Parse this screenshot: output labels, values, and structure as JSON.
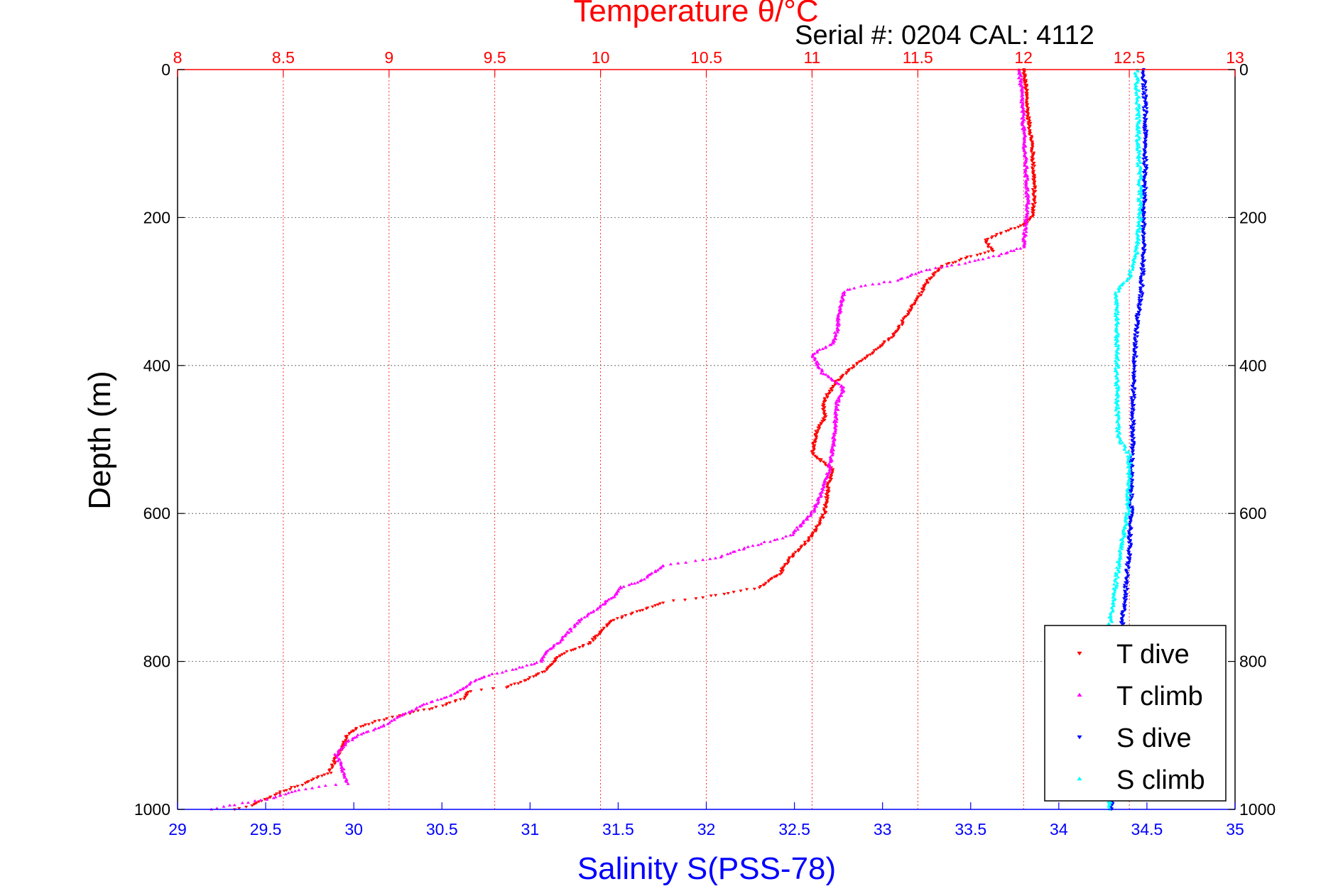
{
  "chart_data": {
    "type": "scatter",
    "title": "Temperature θ/°C",
    "subtitle": "Serial #: 0204  CAL: 4112",
    "xlabel": "Salinity S(PSS-78)",
    "ylabel": "Depth (m)",
    "x_bottom": {
      "label": "Salinity S(PSS-78)",
      "range": [
        29,
        35
      ],
      "ticks": [
        "29",
        "29.5",
        "30",
        "30.5",
        "31",
        "31.5",
        "32",
        "32.5",
        "33",
        "33.5",
        "34",
        "34.5",
        "35"
      ],
      "color": "#0000ff"
    },
    "x_top": {
      "label": "Temperature θ/°C",
      "range": [
        8,
        13
      ],
      "ticks": [
        "8",
        "8.5",
        "9",
        "9.5",
        "10",
        "10.5",
        "11",
        "11.5",
        "12",
        "12.5",
        "13"
      ],
      "color": "#ff0000"
    },
    "y": {
      "label": "Depth (m)",
      "range": [
        0,
        1000
      ],
      "reversed": true,
      "ticks": [
        "0",
        "200",
        "400",
        "600",
        "800",
        "1000"
      ]
    },
    "grid": true,
    "legend_position": "bottom-right",
    "series": [
      {
        "name": "T dive",
        "axis": "temperature",
        "color": "#ff0000",
        "marker": "triangle-down",
        "points": [
          [
            12.0,
            0
          ],
          [
            12.01,
            20
          ],
          [
            12.02,
            60
          ],
          [
            12.04,
            100
          ],
          [
            12.05,
            150
          ],
          [
            12.05,
            180
          ],
          [
            12.04,
            200
          ],
          [
            12.0,
            210
          ],
          [
            11.9,
            220
          ],
          [
            11.82,
            230
          ],
          [
            11.85,
            245
          ],
          [
            11.72,
            255
          ],
          [
            11.62,
            265
          ],
          [
            11.55,
            285
          ],
          [
            11.52,
            300
          ],
          [
            11.45,
            330
          ],
          [
            11.42,
            345
          ],
          [
            11.38,
            360
          ],
          [
            11.3,
            380
          ],
          [
            11.2,
            400
          ],
          [
            11.12,
            420
          ],
          [
            11.05,
            450
          ],
          [
            11.06,
            470
          ],
          [
            11.02,
            490
          ],
          [
            11.0,
            520
          ],
          [
            11.1,
            540
          ],
          [
            11.08,
            560
          ],
          [
            11.07,
            580
          ],
          [
            11.06,
            600
          ],
          [
            11.0,
            630
          ],
          [
            10.9,
            660
          ],
          [
            10.85,
            680
          ],
          [
            10.75,
            700
          ],
          [
            10.55,
            710
          ],
          [
            10.45,
            715
          ],
          [
            10.3,
            720
          ],
          [
            10.2,
            730
          ],
          [
            10.05,
            745
          ],
          [
            10.0,
            760
          ],
          [
            9.95,
            775
          ],
          [
            9.82,
            790
          ],
          [
            9.78,
            800
          ],
          [
            9.75,
            810
          ],
          [
            9.65,
            825
          ],
          [
            9.55,
            835
          ],
          [
            9.38,
            840
          ],
          [
            9.35,
            850
          ],
          [
            9.25,
            860
          ],
          [
            9.1,
            870
          ],
          [
            8.95,
            880
          ],
          [
            8.85,
            890
          ],
          [
            8.8,
            900
          ],
          [
            8.78,
            915
          ],
          [
            8.75,
            930
          ],
          [
            8.72,
            950
          ],
          [
            8.6,
            965
          ],
          [
            8.5,
            975
          ],
          [
            8.42,
            985
          ],
          [
            8.35,
            995
          ],
          [
            8.27,
            1000
          ]
        ]
      },
      {
        "name": "T climb",
        "axis": "temperature",
        "color": "#ff00ff",
        "marker": "triangle-up",
        "points": [
          [
            11.98,
            0
          ],
          [
            11.99,
            30
          ],
          [
            12.0,
            80
          ],
          [
            12.01,
            130
          ],
          [
            12.02,
            180
          ],
          [
            12.01,
            210
          ],
          [
            12.0,
            240
          ],
          [
            11.9,
            250
          ],
          [
            11.75,
            260
          ],
          [
            11.55,
            270
          ],
          [
            11.4,
            285
          ],
          [
            11.2,
            295
          ],
          [
            11.15,
            300
          ],
          [
            11.13,
            330
          ],
          [
            11.12,
            350
          ],
          [
            11.1,
            370
          ],
          [
            11.0,
            385
          ],
          [
            11.05,
            410
          ],
          [
            11.15,
            430
          ],
          [
            11.12,
            450
          ],
          [
            11.11,
            480
          ],
          [
            11.1,
            510
          ],
          [
            11.08,
            540
          ],
          [
            11.05,
            570
          ],
          [
            11.0,
            600
          ],
          [
            10.9,
            630
          ],
          [
            10.7,
            645
          ],
          [
            10.55,
            660
          ],
          [
            10.3,
            670
          ],
          [
            10.2,
            690
          ],
          [
            10.1,
            700
          ],
          [
            10.05,
            715
          ],
          [
            10.0,
            725
          ],
          [
            9.9,
            745
          ],
          [
            9.85,
            760
          ],
          [
            9.8,
            775
          ],
          [
            9.75,
            785
          ],
          [
            9.72,
            800
          ],
          [
            9.6,
            810
          ],
          [
            9.45,
            820
          ],
          [
            9.38,
            830
          ],
          [
            9.3,
            845
          ],
          [
            9.15,
            860
          ],
          [
            9.05,
            875
          ],
          [
            8.95,
            890
          ],
          [
            8.85,
            900
          ],
          [
            8.8,
            910
          ],
          [
            8.75,
            925
          ],
          [
            8.78,
            945
          ],
          [
            8.8,
            965
          ],
          [
            8.7,
            968
          ],
          [
            8.55,
            975
          ],
          [
            8.45,
            985
          ],
          [
            8.3,
            992
          ],
          [
            8.16,
            1000
          ]
        ]
      },
      {
        "name": "S dive",
        "axis": "salinity",
        "color": "#0000ff",
        "marker": "triangle-down",
        "points": [
          [
            34.48,
            0
          ],
          [
            34.49,
            50
          ],
          [
            34.49,
            100
          ],
          [
            34.49,
            150
          ],
          [
            34.48,
            200
          ],
          [
            34.48,
            250
          ],
          [
            34.47,
            300
          ],
          [
            34.45,
            330
          ],
          [
            34.44,
            350
          ],
          [
            34.43,
            400
          ],
          [
            34.42,
            450
          ],
          [
            34.42,
            500
          ],
          [
            34.41,
            550
          ],
          [
            34.41,
            600
          ],
          [
            34.4,
            650
          ],
          [
            34.38,
            700
          ],
          [
            34.36,
            750
          ],
          [
            34.34,
            800
          ],
          [
            34.33,
            850
          ],
          [
            34.32,
            900
          ],
          [
            34.31,
            950
          ],
          [
            34.3,
            1000
          ]
        ]
      },
      {
        "name": "S climb",
        "axis": "salinity",
        "color": "#00ffff",
        "marker": "triangle-up",
        "points": [
          [
            34.44,
            0
          ],
          [
            34.45,
            50
          ],
          [
            34.45,
            100
          ],
          [
            34.46,
            150
          ],
          [
            34.46,
            200
          ],
          [
            34.44,
            250
          ],
          [
            34.4,
            280
          ],
          [
            34.33,
            300
          ],
          [
            34.33,
            350
          ],
          [
            34.33,
            400
          ],
          [
            34.33,
            450
          ],
          [
            34.34,
            500
          ],
          [
            34.4,
            520
          ],
          [
            34.4,
            550
          ],
          [
            34.39,
            600
          ],
          [
            34.35,
            650
          ],
          [
            34.32,
            700
          ],
          [
            34.29,
            750
          ],
          [
            34.29,
            800
          ],
          [
            34.29,
            850
          ],
          [
            34.29,
            900
          ],
          [
            34.29,
            950
          ],
          [
            34.29,
            1000
          ]
        ]
      }
    ],
    "legend": [
      {
        "label": "T dive",
        "color": "#ff0000",
        "marker": "triangle-down"
      },
      {
        "label": "T climb",
        "color": "#ff00ff",
        "marker": "triangle-up"
      },
      {
        "label": "S dive",
        "color": "#0000ff",
        "marker": "triangle-down"
      },
      {
        "label": "S climb",
        "color": "#00ffff",
        "marker": "triangle-up"
      }
    ]
  }
}
